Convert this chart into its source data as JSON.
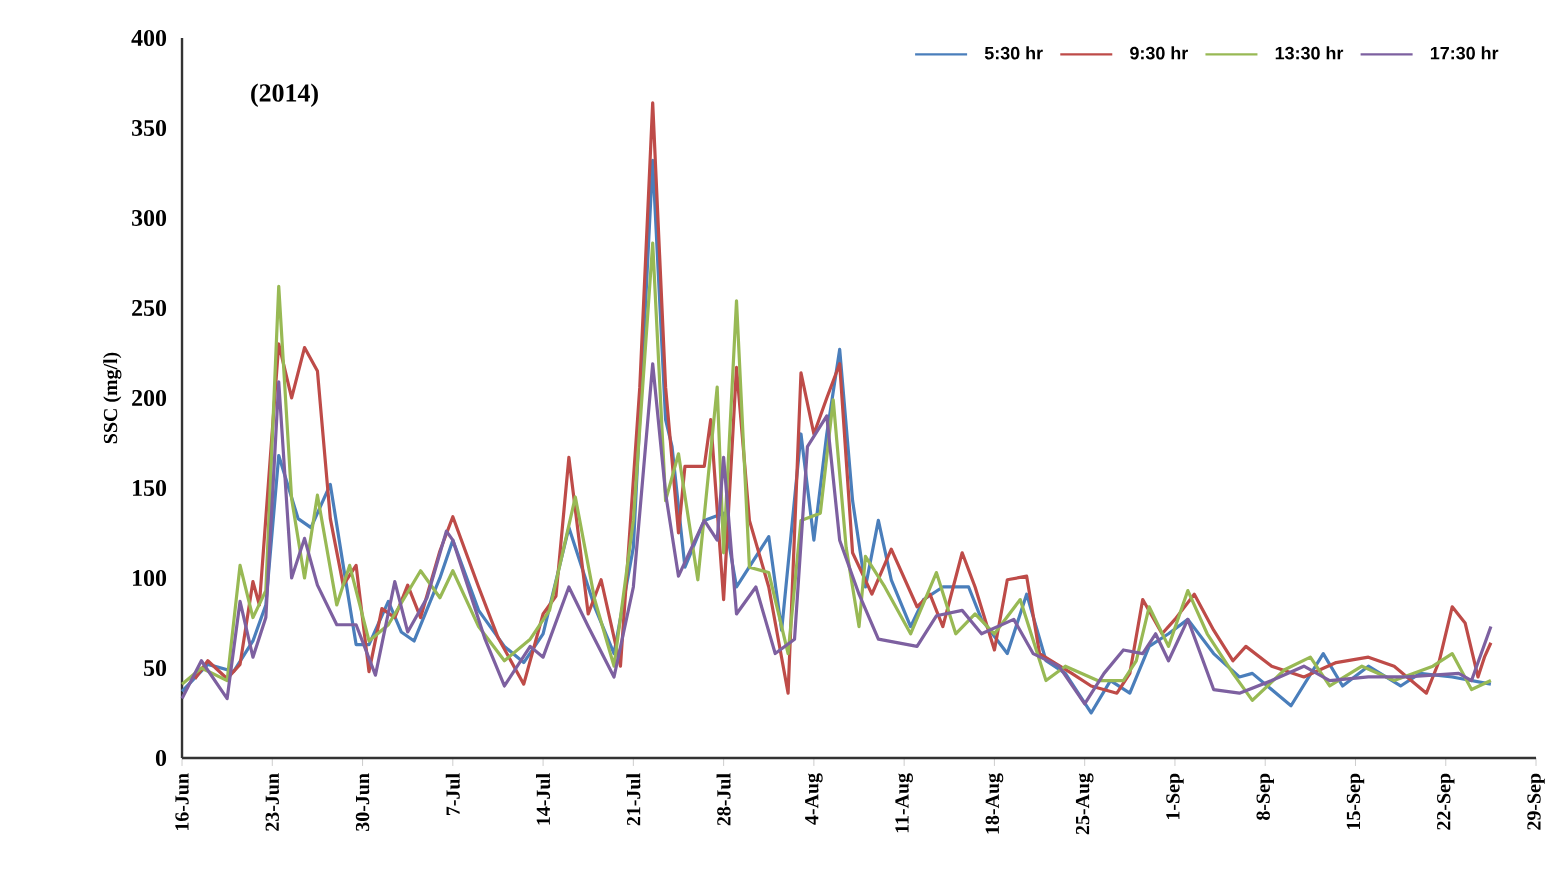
{
  "chart_data": {
    "type": "line",
    "title": "(2014)",
    "ylabel": "SSC (mg/l)",
    "xlim": [
      "2014-06-16",
      "2014-09-29"
    ],
    "xticks": [
      {
        "value": "2014-06-16",
        "label": "16-Jun"
      },
      {
        "value": "2014-06-23",
        "label": "23-Jun"
      },
      {
        "value": "2014-06-30",
        "label": "30-Jun"
      },
      {
        "value": "2014-07-07",
        "label": "7-Jul"
      },
      {
        "value": "2014-07-14",
        "label": "14-Jul"
      },
      {
        "value": "2014-07-21",
        "label": "21-Jul"
      },
      {
        "value": "2014-07-28",
        "label": "28-Jul"
      },
      {
        "value": "2014-08-04",
        "label": "4-Aug"
      },
      {
        "value": "2014-08-11",
        "label": "11-Aug"
      },
      {
        "value": "2014-08-18",
        "label": "18-Aug"
      },
      {
        "value": "2014-08-25",
        "label": "25-Aug"
      },
      {
        "value": "2014-09-01",
        "label": "1-Sep"
      },
      {
        "value": "2014-09-08",
        "label": "8-Sep"
      },
      {
        "value": "2014-09-15",
        "label": "15-Sep"
      },
      {
        "value": "2014-09-22",
        "label": "22-Sep"
      },
      {
        "value": "2014-09-29",
        "label": "29-Sep"
      }
    ],
    "ylim": [
      0,
      400
    ],
    "yticks": [
      0,
      50,
      100,
      150,
      200,
      250,
      300,
      350,
      400
    ],
    "grid": false,
    "legend": "top right",
    "marker": "none",
    "line_style": "solid",
    "series": [
      {
        "name": "5:30 hr",
        "color": "#4a7ebb",
        "x": [
          "2014-06-16",
          "2014-06-18",
          "2014-06-20",
          "2014-06-21T12:00",
          "2014-06-22T12:00",
          "2014-06-23T12:00",
          "2014-06-25",
          "2014-06-26",
          "2014-06-27T12:00",
          "2014-06-28T12:00",
          "2014-06-29T12:00",
          "2014-06-30T12:00",
          "2014-07-02",
          "2014-07-03",
          "2014-07-04",
          "2014-07-06",
          "2014-07-07",
          "2014-07-09",
          "2014-07-11",
          "2014-07-12T12:00",
          "2014-07-14",
          "2014-07-16",
          "2014-07-18",
          "2014-07-19T12:00",
          "2014-07-21",
          "2014-07-22T12:00",
          "2014-07-23T12:00",
          "2014-07-24",
          "2014-07-25",
          "2014-07-26T12:00",
          "2014-07-28",
          "2014-07-29",
          "2014-07-31T12:00",
          "2014-08-01T12:00",
          "2014-08-03",
          "2014-08-04",
          "2014-08-05",
          "2014-08-06",
          "2014-08-07",
          "2014-08-08",
          "2014-08-09",
          "2014-08-10",
          "2014-08-11T12:00",
          "2014-08-12T12:00",
          "2014-08-14",
          "2014-08-16",
          "2014-08-17",
          "2014-08-19",
          "2014-08-20T12:00",
          "2014-08-22",
          "2014-08-23T12:00",
          "2014-08-25T12:00",
          "2014-08-27",
          "2014-08-28T12:00",
          "2014-08-30",
          "2014-08-31T12:00",
          "2014-09-02",
          "2014-09-04",
          "2014-09-06",
          "2014-09-07",
          "2014-09-10",
          "2014-09-12T12:00",
          "2014-09-14",
          "2014-09-16",
          "2014-09-18T12:00",
          "2014-09-20",
          "2014-09-22T12:00",
          "2014-09-25T12:00"
        ],
        "values": [
          37,
          52,
          48,
          65,
          85,
          168,
          133,
          128,
          152,
          107,
          63,
          63,
          87,
          70,
          65,
          100,
          121,
          82,
          62,
          53,
          69,
          128,
          84,
          58,
          117,
          332,
          188,
          173,
          106,
          132,
          136,
          95,
          123,
          71,
          180,
          121,
          180,
          227,
          143,
          95,
          132,
          99,
          73,
          88,
          95,
          95,
          77,
          58,
          91,
          54,
          47,
          25,
          43,
          36,
          62,
          69,
          77,
          58,
          45,
          47,
          29,
          58,
          40,
          51,
          40,
          47,
          45,
          41
        ]
      },
      {
        "name": "9:30 hr",
        "color": "#be4b48",
        "x": [
          "2014-06-17",
          "2014-06-18",
          "2014-06-19T12:00",
          "2014-06-20T12:00",
          "2014-06-21T12:00",
          "2014-06-22",
          "2014-06-23T12:00",
          "2014-06-24T12:00",
          "2014-06-25T12:00",
          "2014-06-26T12:00",
          "2014-06-27T12:00",
          "2014-06-28T12:00",
          "2014-06-29T12:00",
          "2014-06-30T12:00",
          "2014-07-01T12:00",
          "2014-07-02T12:00",
          "2014-07-03T12:00",
          "2014-07-04T12:00",
          "2014-07-06",
          "2014-07-07",
          "2014-07-09",
          "2014-07-10T12:00",
          "2014-07-12T12:00",
          "2014-07-14",
          "2014-07-15",
          "2014-07-16",
          "2014-07-17T12:00",
          "2014-07-18T12:00",
          "2014-07-20",
          "2014-07-21T12:00",
          "2014-07-22T12:00",
          "2014-07-23T12:00",
          "2014-07-24T12:00",
          "2014-07-25",
          "2014-07-26T12:00",
          "2014-07-27",
          "2014-07-28",
          "2014-07-29",
          "2014-07-30",
          "2014-07-31T12:00",
          "2014-08-02",
          "2014-08-03",
          "2014-08-04",
          "2014-08-05",
          "2014-08-06",
          "2014-08-07",
          "2014-08-08T12:00",
          "2014-08-10",
          "2014-08-12",
          "2014-08-13",
          "2014-08-14",
          "2014-08-15T12:00",
          "2014-08-16T12:00",
          "2014-08-18",
          "2014-08-19",
          "2014-08-20T12:00",
          "2014-08-21T12:00",
          "2014-08-24",
          "2014-08-25T12:00",
          "2014-08-27T12:00",
          "2014-08-28T12:00",
          "2014-08-29T12:00",
          "2014-08-31",
          "2014-09-01",
          "2014-09-02T12:00",
          "2014-09-04",
          "2014-09-05T12:00",
          "2014-09-06T12:00",
          "2014-09-08T12:00",
          "2014-09-11",
          "2014-09-13T12:00",
          "2014-09-16",
          "2014-09-18",
          "2014-09-20T12:00",
          "2014-09-21T12:00",
          "2014-09-22T12:00",
          "2014-09-23T12:00",
          "2014-09-24T12:00",
          "2014-09-25",
          "2014-09-25T12:00"
        ],
        "values": [
          44,
          54,
          44,
          52,
          98,
          85,
          230,
          200,
          228,
          215,
          133,
          96,
          107,
          48,
          83,
          78,
          96,
          78,
          115,
          134,
          95,
          67,
          41,
          80,
          90,
          167,
          80,
          99,
          51,
          206,
          364,
          206,
          125,
          162,
          162,
          188,
          88,
          217,
          132,
          95,
          36,
          214,
          180,
          200,
          219,
          114,
          91,
          116,
          84,
          91,
          73,
          114,
          95,
          60,
          99,
          101,
          58,
          47,
          40,
          36,
          47,
          88,
          69,
          77,
          91,
          71,
          54,
          62,
          51,
          45,
          53,
          56,
          51,
          36,
          54,
          84,
          75,
          45,
          56,
          64
        ]
      },
      {
        "name": "13:30 hr",
        "color": "#98b954",
        "x": [
          "2014-06-16",
          "2014-06-17T12:00",
          "2014-06-19T12:00",
          "2014-06-20T12:00",
          "2014-06-21T12:00",
          "2014-06-22T12:00",
          "2014-06-23T12:00",
          "2014-06-24T12:00",
          "2014-06-25T12:00",
          "2014-06-26T12:00",
          "2014-06-28",
          "2014-06-29",
          "2014-06-30T12:00",
          "2014-07-02",
          "2014-07-04T12:00",
          "2014-07-06",
          "2014-07-07",
          "2014-07-09",
          "2014-07-11",
          "2014-07-13",
          "2014-07-14T12:00",
          "2014-07-16T12:00",
          "2014-07-18",
          "2014-07-19T12:00",
          "2014-07-21",
          "2014-07-22T12:00",
          "2014-07-23T12:00",
          "2014-07-24T12:00",
          "2014-07-26",
          "2014-07-27T12:00",
          "2014-07-28",
          "2014-07-29",
          "2014-07-30",
          "2014-07-31T12:00",
          "2014-08-02",
          "2014-08-03",
          "2014-08-04T12:00",
          "2014-08-05T12:00",
          "2014-08-06T12:00",
          "2014-08-07T12:00",
          "2014-08-08",
          "2014-08-09T12:00",
          "2014-08-11T12:00",
          "2014-08-13T12:00",
          "2014-08-15",
          "2014-08-16T12:00",
          "2014-08-18",
          "2014-08-20",
          "2014-08-22",
          "2014-08-23T12:00",
          "2014-08-26",
          "2014-08-28",
          "2014-08-29",
          "2014-08-30",
          "2014-08-31T12:00",
          "2014-09-02",
          "2014-09-03T12:00",
          "2014-09-05T12:00",
          "2014-09-07",
          "2014-09-09T12:00",
          "2014-09-11T12:00",
          "2014-09-13",
          "2014-09-15T12:00",
          "2014-09-18",
          "2014-09-21",
          "2014-09-22T12:00",
          "2014-09-24",
          "2014-09-25T12:00"
        ],
        "values": [
          41,
          50,
          43,
          107,
          78,
          93,
          262,
          144,
          100,
          146,
          85,
          107,
          65,
          74,
          104,
          89,
          104,
          73,
          54,
          66,
          82,
          145,
          88,
          51,
          132,
          286,
          143,
          169,
          99,
          206,
          114,
          254,
          106,
          103,
          58,
          132,
          136,
          199,
          117,
          73,
          112,
          95,
          69,
          103,
          69,
          80,
          69,
          88,
          43,
          51,
          43,
          43,
          54,
          84,
          62,
          93,
          69,
          47,
          32,
          49,
          56,
          40,
          51,
          43,
          51,
          58,
          38,
          43
        ]
      },
      {
        "name": "17:30 hr",
        "color": "#7d60a0",
        "x": [
          "2014-06-16",
          "2014-06-17T12:00",
          "2014-06-19T12:00",
          "2014-06-20T12:00",
          "2014-06-21T12:00",
          "2014-06-22T12:00",
          "2014-06-23T12:00",
          "2014-06-24T12:00",
          "2014-06-25T12:00",
          "2014-06-26T12:00",
          "2014-06-28",
          "2014-06-29T12:00",
          "2014-07-01",
          "2014-07-02T12:00",
          "2014-07-03T12:00",
          "2014-07-05",
          "2014-07-06T12:00",
          "2014-07-07",
          "2014-07-09T12:00",
          "2014-07-11",
          "2014-07-13",
          "2014-07-14",
          "2014-07-16",
          "2014-07-17T12:00",
          "2014-07-19T12:00",
          "2014-07-21",
          "2014-07-22T12:00",
          "2014-07-23T12:00",
          "2014-07-24T12:00",
          "2014-07-26T12:00",
          "2014-07-27T12:00",
          "2014-07-28",
          "2014-07-29",
          "2014-07-30T12:00",
          "2014-08-01",
          "2014-08-02T12:00",
          "2014-08-03T12:00",
          "2014-08-05",
          "2014-08-06",
          "2014-08-07T12:00",
          "2014-08-09",
          "2014-08-12",
          "2014-08-13T12:00",
          "2014-08-15T12:00",
          "2014-08-17",
          "2014-08-19T12:00",
          "2014-08-21",
          "2014-08-23",
          "2014-08-25",
          "2014-08-26T12:00",
          "2014-08-28",
          "2014-08-29T12:00",
          "2014-08-30T12:00",
          "2014-08-31T12:00",
          "2014-09-02",
          "2014-09-04",
          "2014-09-06",
          "2014-09-08T12:00",
          "2014-09-11",
          "2014-09-13",
          "2014-09-16",
          "2014-09-19",
          "2014-09-23",
          "2014-09-24",
          "2014-09-25T12:00"
        ],
        "values": [
          33,
          54,
          33,
          87,
          56,
          78,
          209,
          100,
          122,
          96,
          74,
          74,
          46,
          98,
          70,
          89,
          126,
          121,
          66,
          40,
          62,
          56,
          95,
          73,
          45,
          95,
          219,
          147,
          101,
          132,
          121,
          167,
          80,
          95,
          58,
          66,
          173,
          190,
          121,
          91,
          66,
          62,
          79,
          82,
          69,
          77,
          58,
          51,
          30,
          47,
          60,
          58,
          69,
          54,
          77,
          38,
          36,
          43,
          51,
          43,
          45,
          45,
          47,
          43,
          73
        ]
      }
    ]
  }
}
